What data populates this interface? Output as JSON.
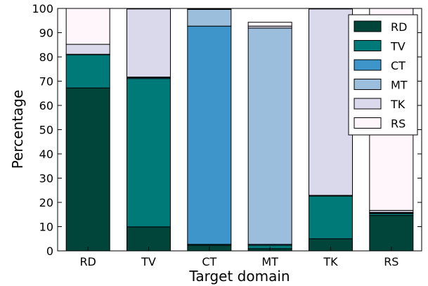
{
  "chart_data": {
    "type": "bar",
    "stacked": true,
    "categories": [
      "RD",
      "TV",
      "CT",
      "MT",
      "TK",
      "RS"
    ],
    "series": [
      {
        "name": "RD",
        "color": "#00443a",
        "values": [
          67.2,
          9.9,
          2.3,
          0.9,
          5.0,
          14.6
        ]
      },
      {
        "name": "TV",
        "color": "#007a78",
        "values": [
          13.7,
          61.2,
          0.4,
          1.4,
          17.6,
          0.8
        ]
      },
      {
        "name": "CT",
        "color": "#3e95c9",
        "values": [
          0.1,
          0.4,
          90.0,
          0.4,
          0.2,
          0.2
        ]
      },
      {
        "name": "MT",
        "color": "#9bbedc",
        "values": [
          0.1,
          0.2,
          6.9,
          89.2,
          0.1,
          0.3
        ]
      },
      {
        "name": "TK",
        "color": "#dad9ec",
        "values": [
          4.1,
          28.1,
          0.3,
          0.8,
          76.9,
          0.8
        ]
      },
      {
        "name": "RS",
        "color": "#fff6fb",
        "values": [
          14.8,
          0.2,
          0.1,
          1.6,
          0.2,
          83.3
        ]
      }
    ],
    "title": "",
    "xlabel": "Target domain",
    "ylabel": "Percentage",
    "ylim": [
      0,
      100
    ],
    "yticks": [
      0,
      10,
      20,
      30,
      40,
      50,
      60,
      70,
      80,
      90,
      100
    ],
    "grid": false,
    "legend_position": "top-right"
  }
}
